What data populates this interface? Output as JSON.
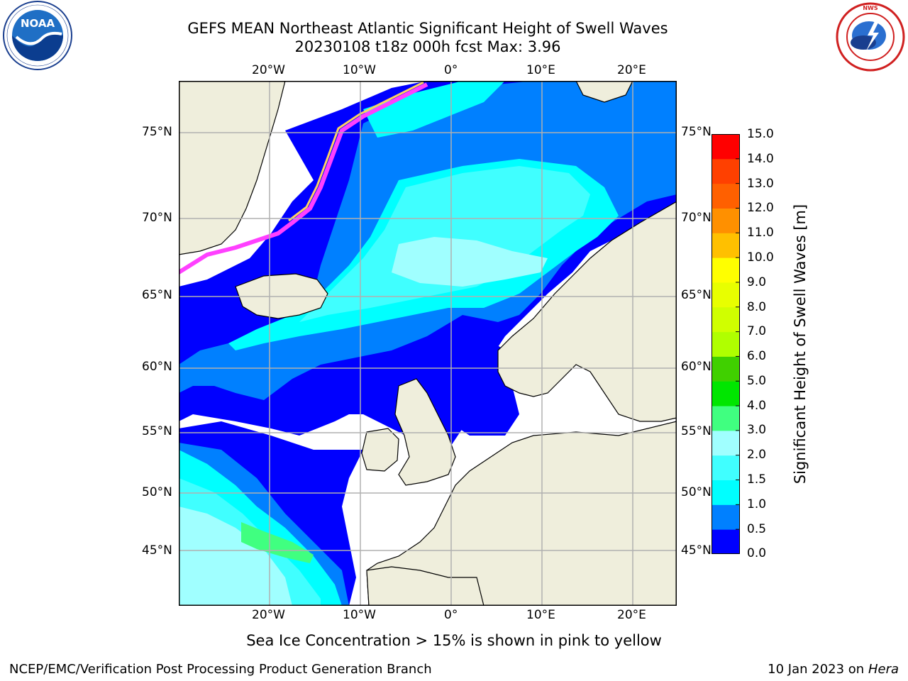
{
  "header": {
    "title_line1": "GEFS MEAN Northeast Atlantic Significant Height of Swell Waves",
    "title_line2": "20230108 t18z 000h fcst   Max: 3.96"
  },
  "logos": {
    "left": {
      "name": "noaa-logo-icon",
      "text": "NOAA",
      "ring_text": "NATIONAL OCEANIC AND ATMOSPHERIC ADMINISTRATION · U.S. DEPARTMENT OF COMMERCE"
    },
    "right": {
      "name": "nws-logo-icon",
      "ring_text": "NATIONAL WEATHER SERVICE"
    }
  },
  "map": {
    "lon_labels": [
      "20°W",
      "10°W",
      "0°",
      "10°E",
      "20°E"
    ],
    "lat_labels": [
      "75°N",
      "70°N",
      "65°N",
      "60°N",
      "55°N",
      "50°N",
      "45°N"
    ],
    "colors": {
      "ocean_calm": "#ffffff",
      "land": "#efeedc",
      "grid": "#b0b0b0",
      "coast": "#000000"
    }
  },
  "colorbar": {
    "label": "Significant Height of Swell Waves [m]",
    "ticks": [
      "15.0",
      "14.0",
      "13.0",
      "12.0",
      "11.0",
      "10.0",
      "9.0",
      "8.0",
      "7.0",
      "6.0",
      "5.0",
      "4.0",
      "3.0",
      "2.0",
      "1.5",
      "1.0",
      "0.5",
      "0.0"
    ],
    "bins": [
      {
        "from": 0.0,
        "to": 0.5,
        "color": "#0000ff"
      },
      {
        "from": 0.5,
        "to": 1.0,
        "color": "#0080ff"
      },
      {
        "from": 1.0,
        "to": 1.5,
        "color": "#00ffff"
      },
      {
        "from": 1.5,
        "to": 2.0,
        "color": "#40ffff"
      },
      {
        "from": 2.0,
        "to": 3.0,
        "color": "#a0ffff"
      },
      {
        "from": 3.0,
        "to": 4.0,
        "color": "#40ff80"
      },
      {
        "from": 4.0,
        "to": 5.0,
        "color": "#00e600"
      },
      {
        "from": 5.0,
        "to": 6.0,
        "color": "#40d000"
      },
      {
        "from": 6.0,
        "to": 7.0,
        "color": "#b0ff00"
      },
      {
        "from": 7.0,
        "to": 8.0,
        "color": "#d0ff00"
      },
      {
        "from": 8.0,
        "to": 9.0,
        "color": "#e8ff00"
      },
      {
        "from": 9.0,
        "to": 10.0,
        "color": "#ffff00"
      },
      {
        "from": 10.0,
        "to": 11.0,
        "color": "#ffc000"
      },
      {
        "from": 11.0,
        "to": 12.0,
        "color": "#ff9000"
      },
      {
        "from": 12.0,
        "to": 13.0,
        "color": "#ff6000"
      },
      {
        "from": 13.0,
        "to": 14.0,
        "color": "#ff4000"
      },
      {
        "from": 14.0,
        "to": 15.0,
        "color": "#ff0000"
      }
    ]
  },
  "caption": "Sea Ice Concentration > 15% is shown in pink to yellow",
  "footer": {
    "left": "NCEP/EMC/Verification Post Processing Product Generation Branch",
    "right_date": "10 Jan 2023 on ",
    "right_host": "Hera"
  }
}
